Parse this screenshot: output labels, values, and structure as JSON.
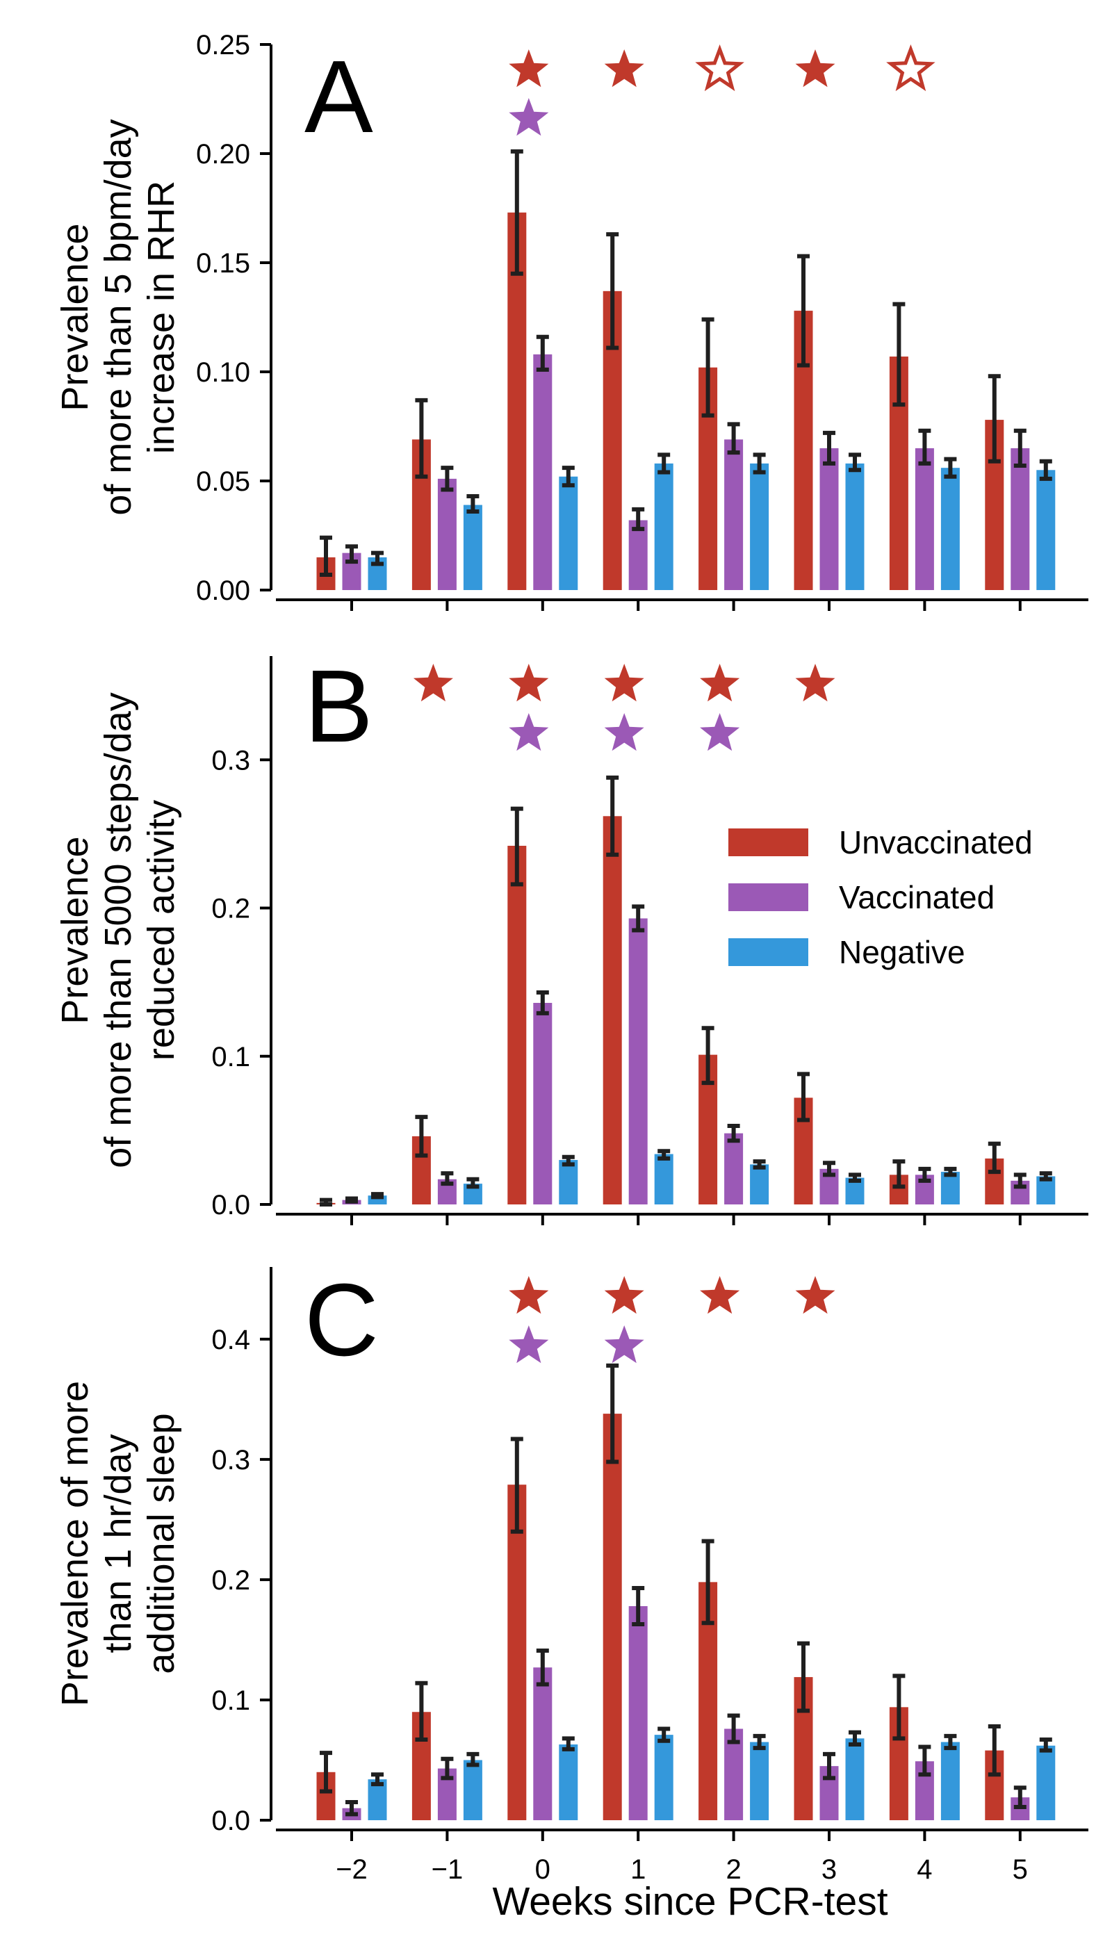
{
  "chart_data": {
    "type": "bar",
    "xlabel": "Weeks since PCR-test",
    "categories": [
      -2,
      -1,
      0,
      1,
      2,
      3,
      4,
      5
    ],
    "xtick_labels": [
      "−2",
      "−1",
      "0",
      "1",
      "2",
      "3",
      "4",
      "5"
    ],
    "legend": [
      "Unvaccinated",
      "Vaccinated",
      "Negative"
    ],
    "legend_position": "right",
    "colors": {
      "Unvaccinated": "#c0392b",
      "Vaccinated": "#9b59b6",
      "Negative": "#3498db",
      "error": "#1f1f1f"
    },
    "panels": [
      {
        "label": "A",
        "ylabel_lines": [
          "Prevalence",
          "of more than 5 bpm/day",
          "increase in RHR"
        ],
        "ylim": [
          0,
          0.25
        ],
        "yticks": [
          0.0,
          0.05,
          0.1,
          0.15,
          0.2,
          0.25
        ],
        "ytick_labels": [
          "0.00",
          "0.05",
          "0.10",
          "0.15",
          "0.20",
          "0.25"
        ],
        "series": [
          {
            "name": "Unvaccinated",
            "values": [
              0.015,
              0.069,
              0.173,
              0.137,
              0.102,
              0.128,
              0.107,
              0.078
            ],
            "err_low": [
              0.007,
              0.052,
              0.145,
              0.111,
              0.08,
              0.103,
              0.085,
              0.059
            ],
            "err_high": [
              0.024,
              0.087,
              0.201,
              0.163,
              0.124,
              0.153,
              0.131,
              0.098
            ]
          },
          {
            "name": "Vaccinated",
            "values": [
              0.017,
              0.051,
              0.108,
              0.032,
              0.069,
              0.065,
              0.065,
              0.065
            ],
            "err_low": [
              0.013,
              0.046,
              0.101,
              0.028,
              0.063,
              0.058,
              0.058,
              0.057
            ],
            "err_high": [
              0.02,
              0.056,
              0.116,
              0.037,
              0.076,
              0.072,
              0.073,
              0.073
            ]
          },
          {
            "name": "Negative",
            "values": [
              0.015,
              0.039,
              0.052,
              0.058,
              0.058,
              0.058,
              0.056,
              0.055
            ],
            "err_low": [
              0.012,
              0.036,
              0.048,
              0.054,
              0.054,
              0.055,
              0.052,
              0.051
            ],
            "err_high": [
              0.017,
              0.043,
              0.056,
              0.062,
              0.062,
              0.062,
              0.06,
              0.059
            ]
          }
        ],
        "markers": [
          {
            "week": 0,
            "row": 1,
            "series": "Unvaccinated",
            "filled": true
          },
          {
            "week": 1,
            "row": 1,
            "series": "Unvaccinated",
            "filled": true
          },
          {
            "week": 2,
            "row": 1,
            "series": "Unvaccinated",
            "filled": false
          },
          {
            "week": 3,
            "row": 1,
            "series": "Unvaccinated",
            "filled": true
          },
          {
            "week": 4,
            "row": 1,
            "series": "Unvaccinated",
            "filled": false
          },
          {
            "week": 0,
            "row": 2,
            "series": "Vaccinated",
            "filled": true
          }
        ]
      },
      {
        "label": "B",
        "ylabel_lines": [
          "Prevalence",
          "of more than 5000 steps/day",
          "reduced activity"
        ],
        "ylim": [
          0,
          0.37
        ],
        "yticks": [
          0.0,
          0.1,
          0.2,
          0.3
        ],
        "ytick_labels": [
          "0.0",
          "0.1",
          "0.2",
          "0.3"
        ],
        "series": [
          {
            "name": "Unvaccinated",
            "values": [
              0.001,
              0.046,
              0.242,
              0.262,
              0.101,
              0.072,
              0.02,
              0.031
            ],
            "err_low": [
              0.0,
              0.033,
              0.216,
              0.236,
              0.082,
              0.057,
              0.012,
              0.022
            ],
            "err_high": [
              0.003,
              0.059,
              0.267,
              0.288,
              0.119,
              0.088,
              0.029,
              0.041
            ]
          },
          {
            "name": "Vaccinated",
            "values": [
              0.003,
              0.017,
              0.136,
              0.193,
              0.048,
              0.024,
              0.02,
              0.016
            ],
            "err_low": [
              0.002,
              0.014,
              0.129,
              0.185,
              0.043,
              0.02,
              0.016,
              0.012
            ],
            "err_high": [
              0.004,
              0.021,
              0.143,
              0.201,
              0.053,
              0.028,
              0.024,
              0.02
            ]
          },
          {
            "name": "Negative",
            "values": [
              0.006,
              0.014,
              0.03,
              0.034,
              0.027,
              0.018,
              0.022,
              0.019
            ],
            "err_low": [
              0.005,
              0.012,
              0.027,
              0.031,
              0.025,
              0.016,
              0.02,
              0.017
            ],
            "err_high": [
              0.007,
              0.017,
              0.032,
              0.036,
              0.029,
              0.02,
              0.024,
              0.021
            ]
          }
        ],
        "markers": [
          {
            "week": -1,
            "row": 1,
            "series": "Unvaccinated",
            "filled": true
          },
          {
            "week": 0,
            "row": 1,
            "series": "Unvaccinated",
            "filled": true
          },
          {
            "week": 1,
            "row": 1,
            "series": "Unvaccinated",
            "filled": true
          },
          {
            "week": 2,
            "row": 1,
            "series": "Unvaccinated",
            "filled": true
          },
          {
            "week": 3,
            "row": 1,
            "series": "Unvaccinated",
            "filled": true
          },
          {
            "week": 0,
            "row": 2,
            "series": "Vaccinated",
            "filled": true
          },
          {
            "week": 1,
            "row": 2,
            "series": "Vaccinated",
            "filled": true
          },
          {
            "week": 2,
            "row": 2,
            "series": "Vaccinated",
            "filled": true
          }
        ]
      },
      {
        "label": "C",
        "ylabel_lines": [
          "Prevalence of more",
          "than 1 hr/day",
          "additional sleep"
        ],
        "ylim": [
          0,
          0.46
        ],
        "yticks": [
          0.0,
          0.1,
          0.2,
          0.3,
          0.4
        ],
        "ytick_labels": [
          "0.0",
          "0.1",
          "0.2",
          "0.3",
          "0.4"
        ],
        "series": [
          {
            "name": "Unvaccinated",
            "values": [
              0.04,
              0.09,
              0.279,
              0.338,
              0.198,
              0.119,
              0.094,
              0.058
            ],
            "err_low": [
              0.024,
              0.067,
              0.24,
              0.298,
              0.164,
              0.091,
              0.068,
              0.038
            ],
            "err_high": [
              0.056,
              0.114,
              0.317,
              0.378,
              0.232,
              0.147,
              0.12,
              0.078
            ]
          },
          {
            "name": "Vaccinated",
            "values": [
              0.01,
              0.043,
              0.127,
              0.178,
              0.076,
              0.045,
              0.049,
              0.019
            ],
            "err_low": [
              0.005,
              0.035,
              0.113,
              0.163,
              0.065,
              0.035,
              0.038,
              0.011
            ],
            "err_high": [
              0.015,
              0.051,
              0.141,
              0.193,
              0.087,
              0.055,
              0.061,
              0.027
            ]
          },
          {
            "name": "Negative",
            "values": [
              0.034,
              0.05,
              0.063,
              0.071,
              0.065,
              0.068,
              0.065,
              0.062
            ],
            "err_low": [
              0.03,
              0.046,
              0.059,
              0.066,
              0.06,
              0.063,
              0.06,
              0.058
            ],
            "err_high": [
              0.038,
              0.055,
              0.068,
              0.076,
              0.07,
              0.073,
              0.07,
              0.067
            ]
          }
        ],
        "markers": [
          {
            "week": 0,
            "row": 1,
            "series": "Unvaccinated",
            "filled": true
          },
          {
            "week": 1,
            "row": 1,
            "series": "Unvaccinated",
            "filled": true
          },
          {
            "week": 2,
            "row": 1,
            "series": "Unvaccinated",
            "filled": true
          },
          {
            "week": 3,
            "row": 1,
            "series": "Unvaccinated",
            "filled": true
          },
          {
            "week": 0,
            "row": 2,
            "series": "Vaccinated",
            "filled": true
          },
          {
            "week": 1,
            "row": 2,
            "series": "Vaccinated",
            "filled": true
          }
        ]
      }
    ]
  }
}
